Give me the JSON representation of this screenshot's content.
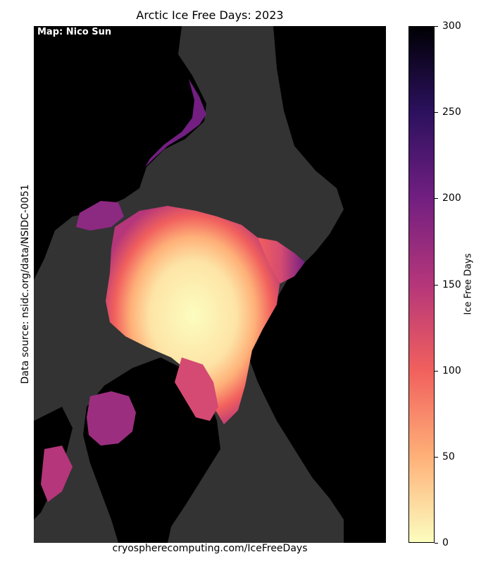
{
  "title": "Arctic Ice Free Days: 2023",
  "watermark": "Map: Nico Sun",
  "credit_bottom": "cryospherecomputing.com/IceFreeDays",
  "credit_side": "Data source: nsidc.org/data/NSIDC-0051",
  "colorbar": {
    "label": "Ice Free Days",
    "min": 0,
    "max": 300,
    "ticks": [
      {
        "value": 0,
        "label": "0"
      },
      {
        "value": 50,
        "label": "50"
      },
      {
        "value": 100,
        "label": "100"
      },
      {
        "value": 150,
        "label": "150"
      },
      {
        "value": 200,
        "label": "200"
      },
      {
        "value": 250,
        "label": "250"
      },
      {
        "value": 300,
        "label": "300"
      }
    ],
    "colormap": "magma_r",
    "colors": [
      "#fcfdbf",
      "#feb078",
      "#f1605d",
      "#b5367a",
      "#721f81",
      "#2c115f",
      "#000004"
    ]
  },
  "colors": {
    "ocean": "#333333",
    "land": "#000000",
    "text": "#000000"
  }
}
